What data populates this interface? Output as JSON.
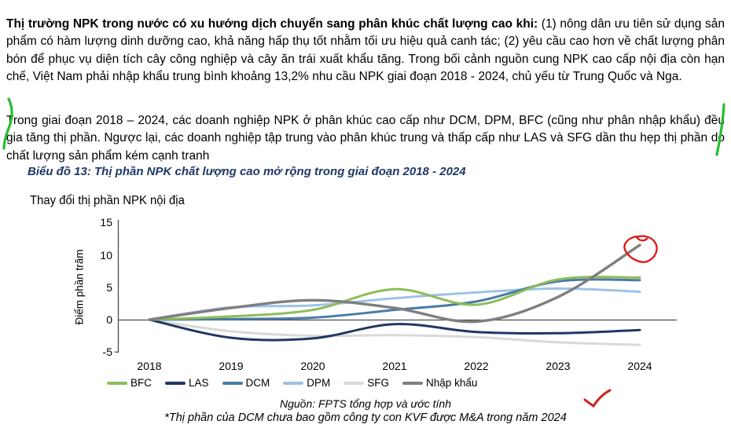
{
  "page": {
    "paragraph1": {
      "bold": "Thị trường NPK trong nước có xu hướng dịch chuyển sang phân khúc chất lượng cao khi:",
      "rest": " (1) nông dân ưu tiên sử dụng sản phẩm có hàm lượng dinh dưỡng cao, khả năng hấp thụ tốt nhằm tối ưu hiệu quả canh tác; (2) yêu cầu cao hơn về chất lượng phân bón để phục vụ diện tích cây công nghiệp và cây ăn trái xuất khẩu tăng. Trong bối cảnh nguồn cung NPK cao cấp nội địa còn hạn chế, Việt Nam phải nhập khẩu trung bình khoảng 13,2% nhu cầu NPK giai đoạn 2018 - 2024, chủ yếu từ Trung Quốc và Nga."
    },
    "paragraph2": "Trong giai đoạn 2018 – 2024, các doanh nghiệp NPK ở phân khúc cao cấp như DCM, DPM, BFC (cũng như phân nhập khẩu) đều gia tăng thị phần. Ngược lại, các doanh nghiệp tập trung vào phân khúc trung và thấp cấp như LAS và SFG dần thu hẹp thị phần do chất lượng sản phẩm kém cạnh tranh",
    "figure_title": "Biểu đồ 13: Thị phần NPK chất lượng cao mở rộng trong giai đoạn 2018 - 2024",
    "figure_title_color": "#1f3864",
    "source_note": "Nguồn: FPTS tổng hợp và ước tính",
    "footnote": "*Thị phần của DCM chưa bao gồm công ty con KVF được M&A trong năm 2024"
  },
  "chart_data": {
    "type": "line",
    "title": "Thay đổi thị phần NPK nội địa",
    "xlabel": "",
    "ylabel": "Điểm phần trăm",
    "categories": [
      "2018",
      "2019",
      "2020",
      "2021",
      "2022",
      "2023",
      "2024"
    ],
    "yticks": [
      15,
      10,
      5,
      0,
      -5
    ],
    "ylim": [
      -5,
      15
    ],
    "grid": false,
    "legend_position": "bottom",
    "series": [
      {
        "name": "BFC",
        "color": "#8fbc59",
        "values": [
          0,
          0.5,
          1.5,
          4.7,
          2.3,
          6.2,
          6.5
        ]
      },
      {
        "name": "LAS",
        "color": "#1f3864",
        "values": [
          0,
          -2.8,
          -2.9,
          -0.7,
          -1.9,
          -2.1,
          -1.6
        ]
      },
      {
        "name": "DCM",
        "color": "#4a7ba7",
        "values": [
          0,
          0.1,
          0.3,
          1.5,
          2.8,
          5.9,
          6.1
        ]
      },
      {
        "name": "DPM",
        "color": "#9dc3e6",
        "values": [
          0,
          1.9,
          2.2,
          3.3,
          4.2,
          4.8,
          4.3
        ]
      },
      {
        "name": "SFG",
        "color": "#d9d9d9",
        "values": [
          0,
          -1.8,
          -2.5,
          -2.4,
          -2.7,
          -3.5,
          -3.9
        ]
      },
      {
        "name": "Nhập khẩu",
        "color": "#7f7f7f",
        "values": [
          0,
          1.8,
          3.0,
          1.8,
          -0.3,
          3.5,
          11.5
        ]
      }
    ]
  },
  "annotations": {
    "red_circle": {
      "label": "hand-drawn circle on Nhập khẩu 2024 endpoint",
      "color": "#dd1c1c"
    },
    "red_check": {
      "label": "hand-drawn check under Nhập khẩu legend",
      "color": "#c9241c"
    },
    "green_left": {
      "label": "hand-drawn margin stroke left of paragraph 2",
      "color": "#27bd2f"
    },
    "green_right": {
      "label": "hand-drawn margin stroke right of paragraph 2",
      "color": "#27bd2f"
    }
  }
}
